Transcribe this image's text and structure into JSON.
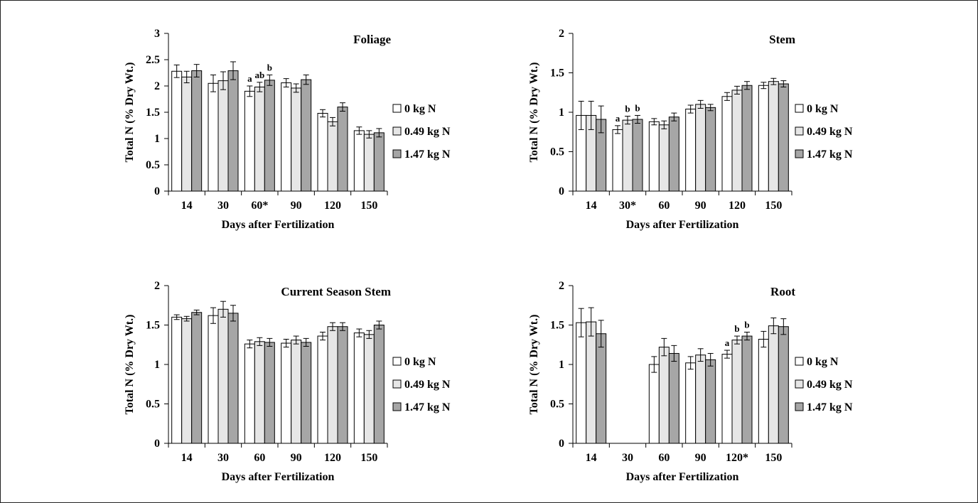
{
  "legend": [
    {
      "label": "0 kg N",
      "color": "#ffffff"
    },
    {
      "label": "0.49 kg N",
      "color": "#e6e6e6"
    },
    {
      "label": "1.47 kg N",
      "color": "#a6a6a6"
    }
  ],
  "chart_data": [
    {
      "type": "bar",
      "title": "Foliage",
      "xlabel": "Days after Fertilization",
      "ylabel": "Total N (% Dry Wt.)",
      "ylim": [
        0,
        3
      ],
      "yticks": [
        "0",
        "0.5",
        "1",
        "1.5",
        "2",
        "2.5",
        "3"
      ],
      "categories": [
        "14",
        "30",
        "60*",
        "90",
        "120",
        "150"
      ],
      "series": [
        {
          "name": "0 kg N",
          "values": [
            2.28,
            2.05,
            1.9,
            2.06,
            1.48,
            1.15
          ],
          "errors": [
            0.12,
            0.16,
            0.1,
            0.08,
            0.07,
            0.07
          ],
          "sig": [
            "",
            "",
            "a",
            "",
            "",
            ""
          ]
        },
        {
          "name": "0.49 kg N",
          "values": [
            2.17,
            2.1,
            1.98,
            1.96,
            1.32,
            1.08
          ],
          "errors": [
            0.11,
            0.17,
            0.09,
            0.08,
            0.08,
            0.07
          ],
          "sig": [
            "",
            "",
            "ab",
            "",
            "",
            ""
          ]
        },
        {
          "name": "1.47 kg N",
          "values": [
            2.29,
            2.29,
            2.11,
            2.12,
            1.6,
            1.11
          ],
          "errors": [
            0.12,
            0.17,
            0.1,
            0.09,
            0.08,
            0.08
          ],
          "sig": [
            "",
            "",
            "b",
            "",
            "",
            ""
          ]
        }
      ],
      "legend_position": "right",
      "grid": false
    },
    {
      "type": "bar",
      "title": "Stem",
      "xlabel": "Days after Fertilization",
      "ylabel": "Total N (% Dry Wt.)",
      "ylim": [
        0,
        2
      ],
      "yticks": [
        "0",
        "0.5",
        "1",
        "1.5",
        "2"
      ],
      "categories": [
        "14",
        "30*",
        "60",
        "90",
        "120",
        "150"
      ],
      "series": [
        {
          "name": "0 kg N",
          "values": [
            0.96,
            0.78,
            0.88,
            1.04,
            1.2,
            1.34
          ],
          "errors": [
            0.18,
            0.05,
            0.04,
            0.05,
            0.05,
            0.04
          ],
          "sig": [
            "",
            "a",
            "",
            "",
            "",
            ""
          ]
        },
        {
          "name": "0.49 kg N",
          "values": [
            0.96,
            0.9,
            0.84,
            1.1,
            1.28,
            1.39
          ],
          "errors": [
            0.18,
            0.05,
            0.05,
            0.05,
            0.05,
            0.04
          ],
          "sig": [
            "",
            "b",
            "",
            "",
            "",
            ""
          ]
        },
        {
          "name": "1.47 kg N",
          "values": [
            0.91,
            0.91,
            0.94,
            1.06,
            1.34,
            1.36
          ],
          "errors": [
            0.17,
            0.05,
            0.05,
            0.04,
            0.05,
            0.04
          ],
          "sig": [
            "",
            "b",
            "",
            "",
            "",
            ""
          ]
        }
      ],
      "legend_position": "right",
      "grid": false
    },
    {
      "type": "bar",
      "title": "Current Season Stem",
      "xlabel": "Days after Fertilization",
      "ylabel": "Total N (% Dry Wt.)",
      "ylim": [
        0,
        2
      ],
      "yticks": [
        "0",
        "0.5",
        "1",
        "1.5",
        "2"
      ],
      "categories": [
        "14",
        "30",
        "60",
        "90",
        "120",
        "150"
      ],
      "series": [
        {
          "name": "0 kg N",
          "values": [
            1.6,
            1.62,
            1.26,
            1.27,
            1.36,
            1.4
          ],
          "errors": [
            0.03,
            0.1,
            0.05,
            0.05,
            0.05,
            0.05
          ],
          "sig": [
            "",
            "",
            "",
            "",
            "",
            ""
          ]
        },
        {
          "name": "0.49 kg N",
          "values": [
            1.58,
            1.7,
            1.29,
            1.31,
            1.48,
            1.38
          ],
          "errors": [
            0.03,
            0.1,
            0.05,
            0.05,
            0.05,
            0.05
          ],
          "sig": [
            "",
            "",
            "",
            "",
            "",
            ""
          ]
        },
        {
          "name": "1.47 kg N",
          "values": [
            1.66,
            1.65,
            1.28,
            1.28,
            1.48,
            1.5
          ],
          "errors": [
            0.03,
            0.1,
            0.05,
            0.05,
            0.05,
            0.05
          ],
          "sig": [
            "",
            "",
            "",
            "",
            "",
            ""
          ]
        }
      ],
      "legend_position": "right",
      "grid": false
    },
    {
      "type": "bar",
      "title": "Root",
      "xlabel": "Days after Fertilization",
      "ylabel": "Total N (% Dry Wt.)",
      "ylim": [
        0,
        2
      ],
      "yticks": [
        "0",
        "0.5",
        "1",
        "1.5",
        "2"
      ],
      "categories": [
        "14",
        "30",
        "60",
        "90",
        "120*",
        "150"
      ],
      "series": [
        {
          "name": "0 kg N",
          "values": [
            1.53,
            null,
            1.0,
            1.02,
            1.13,
            1.32
          ],
          "errors": [
            0.18,
            0,
            0.1,
            0.08,
            0.05,
            0.1
          ],
          "sig": [
            "",
            "",
            "",
            "",
            "a",
            ""
          ]
        },
        {
          "name": "0.49 kg N",
          "values": [
            1.54,
            null,
            1.22,
            1.12,
            1.31,
            1.49
          ],
          "errors": [
            0.18,
            0,
            0.11,
            0.08,
            0.05,
            0.1
          ],
          "sig": [
            "",
            "",
            "",
            "",
            "b",
            ""
          ]
        },
        {
          "name": "1.47 kg N",
          "values": [
            1.39,
            null,
            1.14,
            1.06,
            1.36,
            1.48
          ],
          "errors": [
            0.17,
            0,
            0.1,
            0.08,
            0.05,
            0.1
          ],
          "sig": [
            "",
            "",
            "",
            "",
            "b",
            ""
          ]
        }
      ],
      "legend_position": "right",
      "grid": false
    }
  ]
}
